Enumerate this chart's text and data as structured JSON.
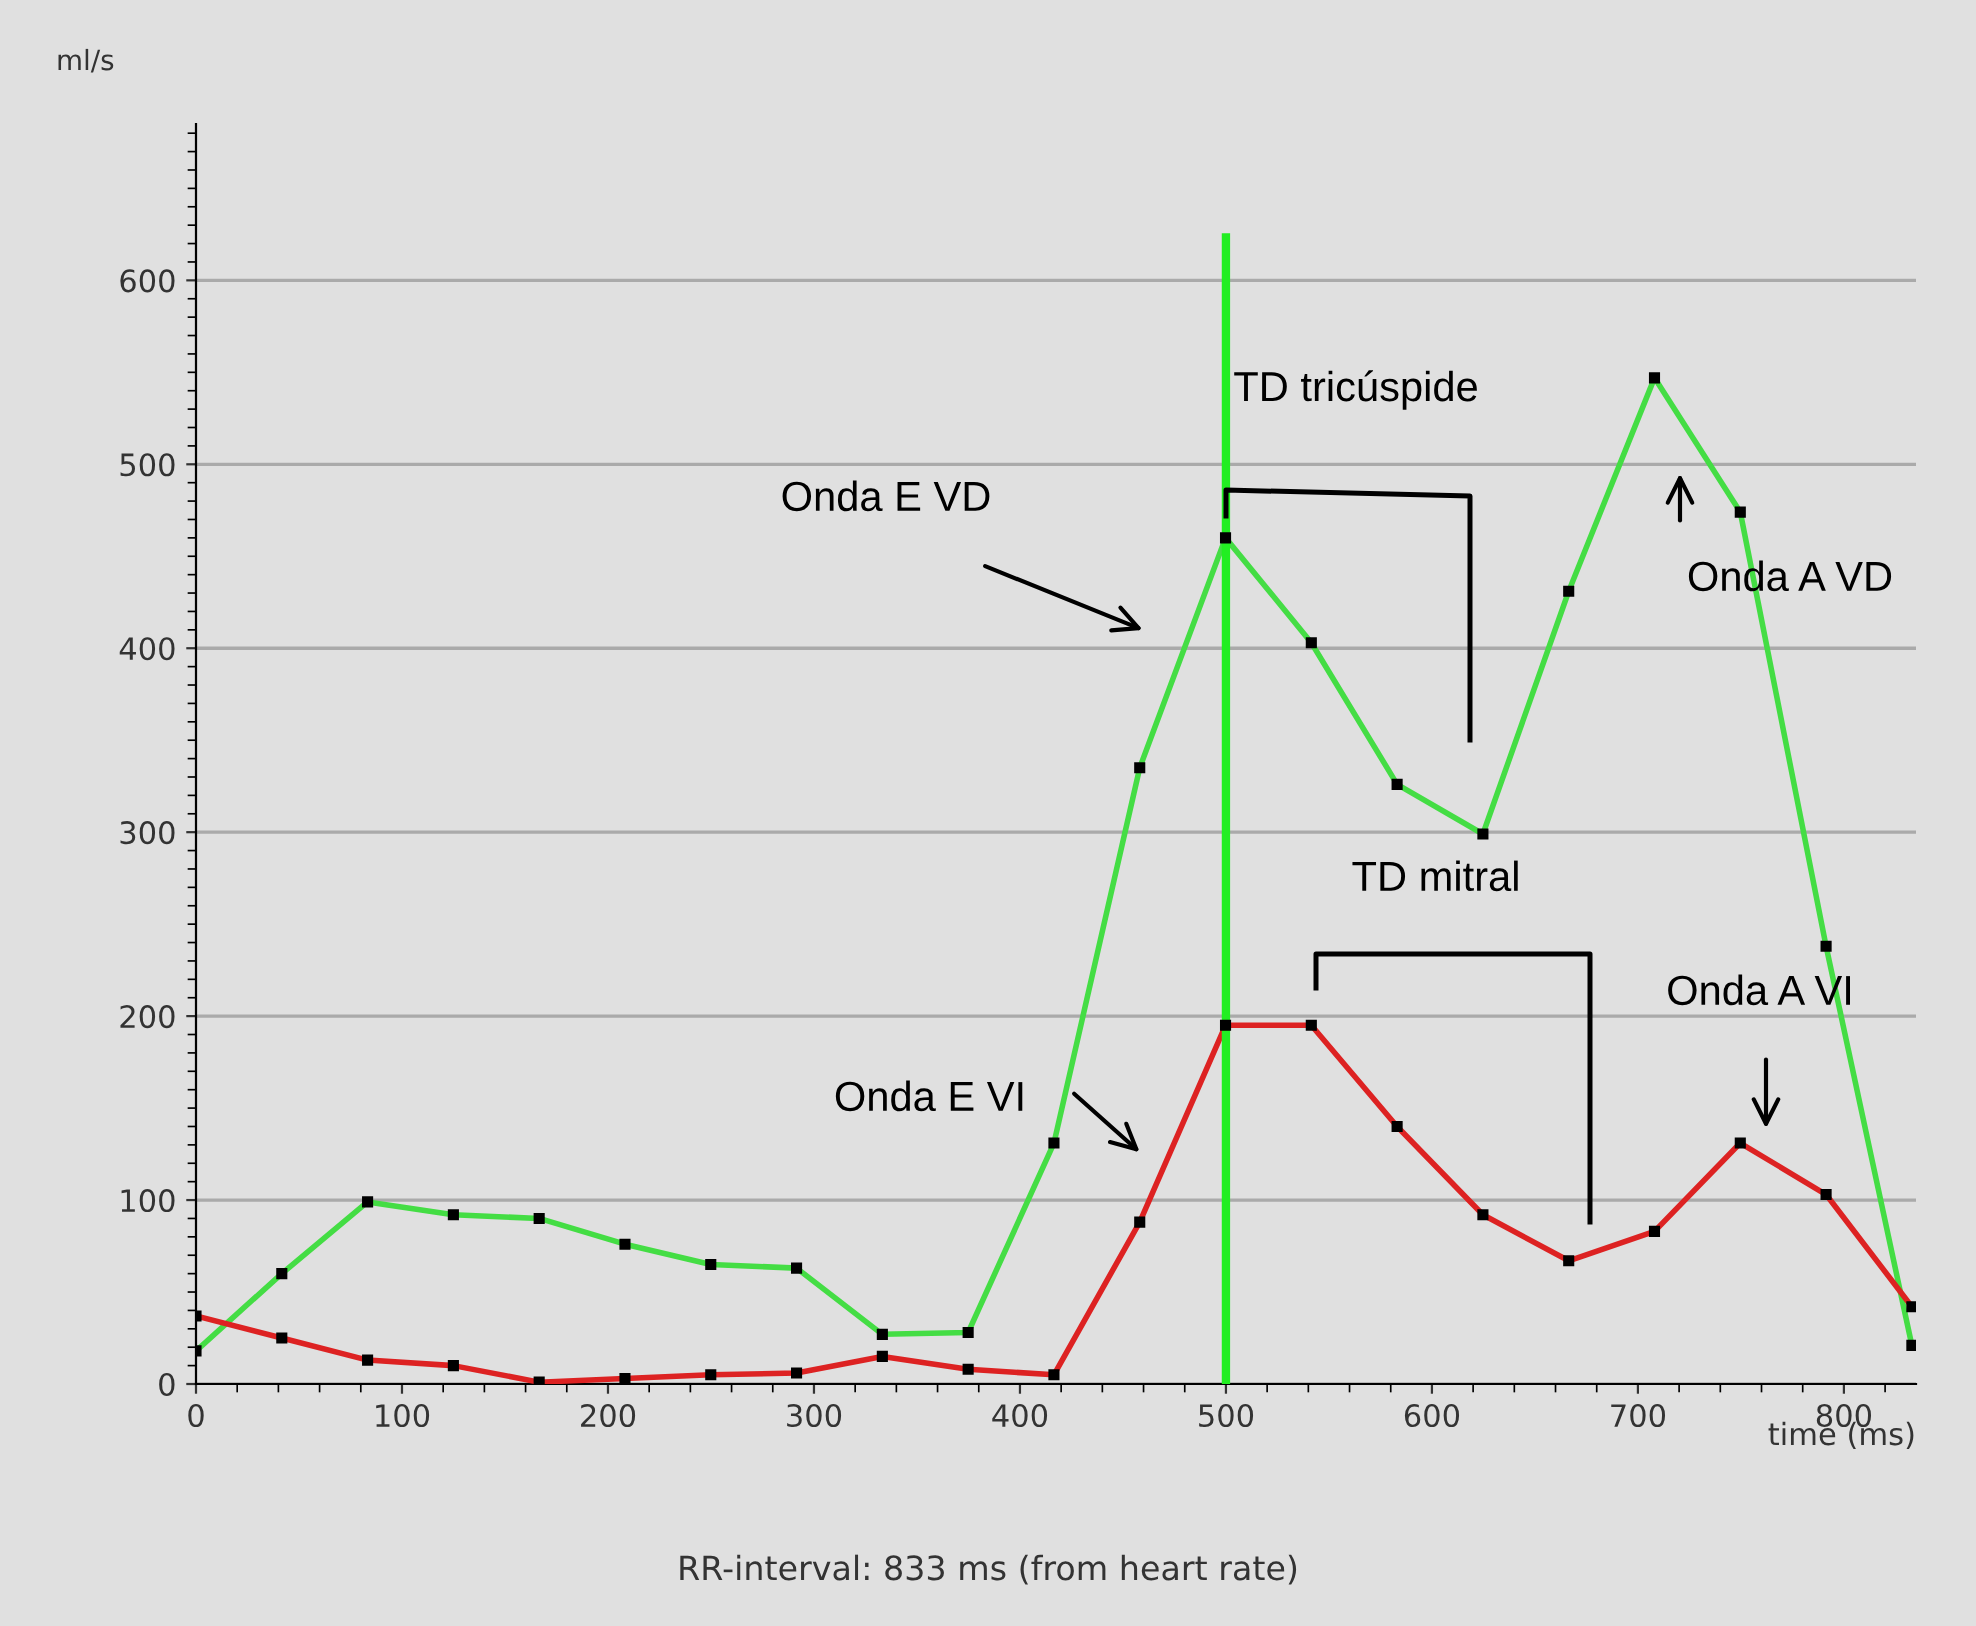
{
  "chart_data": {
    "type": "line",
    "xlabel": "time (ms)",
    "ylabel": "ml/s",
    "x": [
      0,
      41.65,
      83.3,
      124.95,
      166.6,
      208.25,
      249.9,
      291.55,
      333.2,
      374.85,
      416.5,
      458.15,
      499.8,
      541.45,
      583.1,
      624.75,
      666.4,
      708.05,
      749.7,
      791.35,
      833
    ],
    "series": [
      {
        "color": "#44dd44",
        "values": [
          18,
          60,
          99,
          92,
          90,
          76,
          65,
          63,
          27,
          28,
          131,
          335,
          460,
          403,
          326,
          299,
          431,
          547,
          474,
          238,
          21
        ]
      },
      {
        "color": "#dd2222",
        "values": [
          37,
          25,
          13,
          10,
          1,
          3,
          5,
          6,
          15,
          8,
          5,
          88,
          195,
          195,
          140,
          92,
          67,
          83,
          131,
          103,
          42
        ]
      }
    ],
    "xlim": [
      0,
      835
    ],
    "ylim": [
      0,
      685
    ],
    "xticks": [
      0,
      100,
      200,
      300,
      400,
      500,
      600,
      700,
      800
    ],
    "yticks": [
      0,
      100,
      200,
      300,
      400,
      500,
      600
    ],
    "grid": "y",
    "marker": "square",
    "line_style": "solid",
    "ref_lines": [
      {
        "axis": "x",
        "value": 500,
        "color": "#22ee22"
      }
    ],
    "annotations": [
      "Onda E VD",
      "TD tricúspide",
      "Onda A VD",
      "TD mitral",
      "Onda A VI",
      "Onda E VI",
      "RR-interval: 833 ms (from heart rate)"
    ]
  }
}
